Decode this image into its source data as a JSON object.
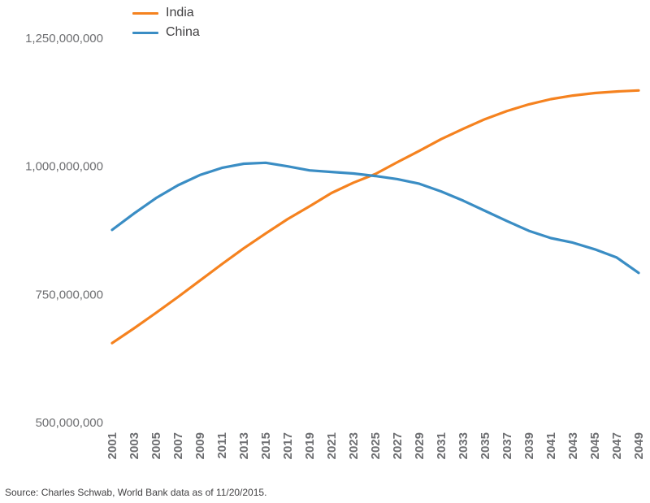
{
  "source_note": "Source: Charles Schwab, World Bank data as of 11/20/2015.",
  "chart_data": {
    "type": "line",
    "title": "",
    "xlabel": "",
    "ylabel": "",
    "grid": false,
    "legend_position": "top-left",
    "ylim": [
      500000000,
      1250000000
    ],
    "yticks": [
      500000000,
      750000000,
      1000000000,
      1250000000
    ],
    "ytick_labels": [
      "500,000,000",
      "750,000,000",
      "1,000,000,000",
      "1,250,000,000"
    ],
    "x": [
      2001,
      2003,
      2005,
      2007,
      2009,
      2011,
      2013,
      2015,
      2017,
      2019,
      2021,
      2023,
      2025,
      2027,
      2029,
      2031,
      2033,
      2035,
      2037,
      2039,
      2041,
      2043,
      2045,
      2047,
      2049
    ],
    "series": [
      {
        "name": "India",
        "color": "#f5821f",
        "values": [
          655000000,
          684000000,
          714000000,
          745000000,
          777000000,
          809000000,
          840000000,
          869000000,
          897000000,
          922000000,
          948000000,
          968000000,
          985000000,
          1008000000,
          1030000000,
          1053000000,
          1073000000,
          1092000000,
          1108000000,
          1121000000,
          1131000000,
          1138000000,
          1143000000,
          1146000000,
          1148000000
        ]
      },
      {
        "name": "China",
        "color": "#3a8dc4",
        "values": [
          876000000,
          908000000,
          938000000,
          963000000,
          983000000,
          997000000,
          1005000000,
          1007000000,
          1000000000,
          992000000,
          989000000,
          986000000,
          981000000,
          975000000,
          966000000,
          951000000,
          933000000,
          913000000,
          893000000,
          874000000,
          860000000,
          851000000,
          838000000,
          822000000,
          792000000
        ]
      }
    ]
  },
  "style": {
    "axis_text_color": "#6d6e71"
  }
}
